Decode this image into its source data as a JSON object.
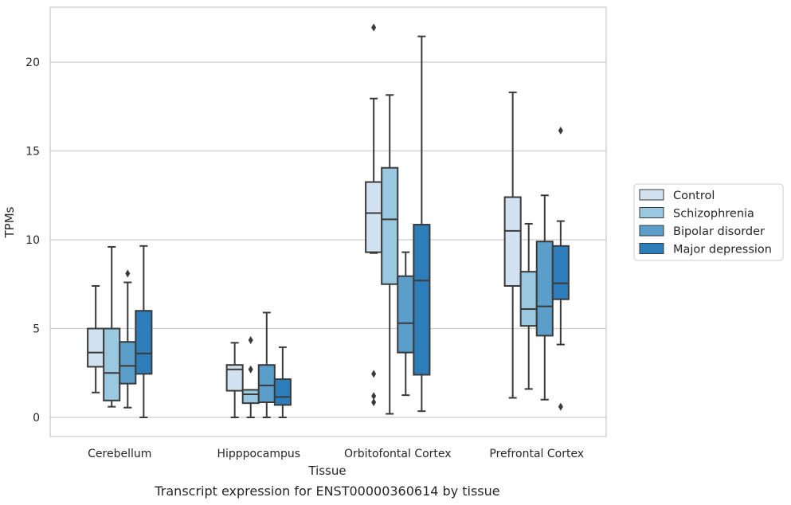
{
  "chart_data": {
    "type": "boxplot",
    "title": "Transcript expression for ENST00000360614 by tissue",
    "xlabel": "Tissue",
    "ylabel": "TPMs",
    "ylim": [
      -1,
      23
    ],
    "yticks": [
      0,
      5,
      10,
      15,
      20
    ],
    "grid": "horizontal",
    "legend_position": "right",
    "categories": [
      "Cerebellum",
      "Hipppocampus",
      "Orbitofontal Cortex",
      "Prefrontal Cortex"
    ],
    "series": [
      {
        "name": "Control",
        "color": "#d3e2f1",
        "boxes": [
          {
            "whislo": 1.4,
            "q1": 2.85,
            "med": 3.65,
            "q3": 5.0,
            "whishi": 7.4,
            "fliers": []
          },
          {
            "whislo": 0.0,
            "q1": 1.5,
            "med": 2.7,
            "q3": 2.95,
            "whishi": 4.2,
            "fliers": []
          },
          {
            "whislo": 9.25,
            "q1": 9.3,
            "med": 11.5,
            "q3": 13.25,
            "whishi": 17.95,
            "fliers": [
              0.85,
              1.2,
              2.45,
              21.95
            ]
          },
          {
            "whislo": 1.1,
            "q1": 7.4,
            "med": 10.5,
            "q3": 12.4,
            "whishi": 18.3,
            "fliers": []
          }
        ]
      },
      {
        "name": "Schizophrenia",
        "color": "#9ac8e0",
        "boxes": [
          {
            "whislo": 0.6,
            "q1": 0.95,
            "med": 2.5,
            "q3": 5.0,
            "whishi": 9.6,
            "fliers": []
          },
          {
            "whislo": 0.0,
            "q1": 0.8,
            "med": 1.3,
            "q3": 1.55,
            "whishi": 1.55,
            "fliers": [
              2.7,
              4.35
            ]
          },
          {
            "whislo": 0.2,
            "q1": 7.5,
            "med": 11.15,
            "q3": 14.05,
            "whishi": 18.15,
            "fliers": []
          },
          {
            "whislo": 1.6,
            "q1": 5.15,
            "med": 6.1,
            "q3": 8.2,
            "whishi": 10.9,
            "fliers": []
          }
        ]
      },
      {
        "name": "Bipolar disorder",
        "color": "#5b9ec9",
        "boxes": [
          {
            "whislo": 0.55,
            "q1": 1.9,
            "med": 2.9,
            "q3": 4.25,
            "whishi": 7.6,
            "fliers": [
              8.1
            ]
          },
          {
            "whislo": 0.0,
            "q1": 0.85,
            "med": 1.8,
            "q3": 2.95,
            "whishi": 5.9,
            "fliers": []
          },
          {
            "whislo": 1.25,
            "q1": 3.65,
            "med": 5.3,
            "q3": 7.95,
            "whishi": 9.3,
            "fliers": []
          },
          {
            "whislo": 1.0,
            "q1": 4.6,
            "med": 6.25,
            "q3": 9.9,
            "whishi": 12.5,
            "fliers": []
          }
        ]
      },
      {
        "name": "Major depression",
        "color": "#2d7dbb",
        "boxes": [
          {
            "whislo": 0.0,
            "q1": 2.45,
            "med": 3.6,
            "q3": 6.0,
            "whishi": 9.65,
            "fliers": []
          },
          {
            "whislo": 0.0,
            "q1": 0.7,
            "med": 1.15,
            "q3": 2.15,
            "whishi": 3.95,
            "fliers": []
          },
          {
            "whislo": 0.35,
            "q1": 2.4,
            "med": 7.7,
            "q3": 10.85,
            "whishi": 21.45,
            "fliers": []
          },
          {
            "whislo": 4.1,
            "q1": 6.65,
            "med": 7.55,
            "q3": 9.65,
            "whishi": 11.05,
            "fliers": [
              0.6,
              16.15
            ]
          }
        ]
      }
    ]
  }
}
